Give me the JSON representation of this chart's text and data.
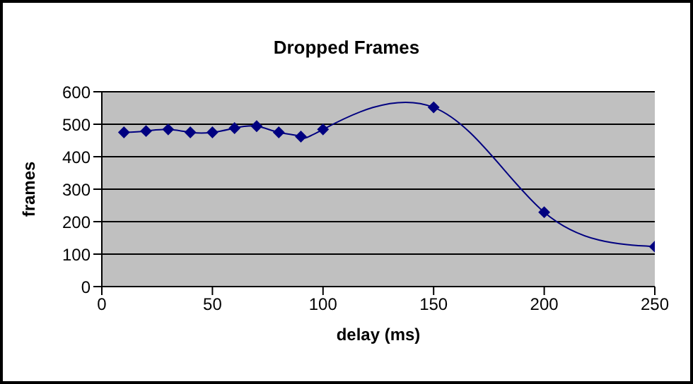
{
  "chart_data": {
    "type": "line",
    "title": "Dropped Frames",
    "xlabel": "delay (ms)",
    "ylabel": "frames",
    "x": [
      10,
      20,
      30,
      40,
      50,
      60,
      70,
      80,
      90,
      100,
      150,
      200,
      250
    ],
    "series": [
      {
        "color": "#000080",
        "values": [
          475,
          479,
          484,
          475,
          475,
          488,
          494,
          475,
          462,
          484,
          552,
          229,
          123
        ]
      }
    ],
    "xlim": [
      0,
      250
    ],
    "xticks": [
      0,
      50,
      100,
      150,
      200,
      250
    ],
    "ylim": [
      0,
      600
    ],
    "yticks": [
      0,
      100,
      200,
      300,
      400,
      500,
      600
    ],
    "grid": "y",
    "legend": false,
    "marker": "diamond",
    "line_style": "solid"
  }
}
